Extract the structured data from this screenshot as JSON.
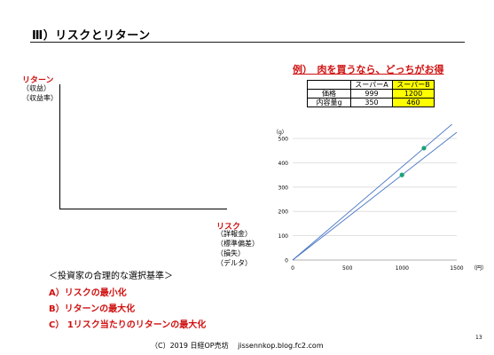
{
  "slide": {
    "title": "Ⅲ）リスクとリターン",
    "page_number": "13",
    "footer": "（C）2019 日経OP売坊　 jissennkop.blog.fc2.com"
  },
  "left_chart": {
    "ylabel": "リターン",
    "ylabel_sub": [
      "（収益）",
      "（収益率）"
    ],
    "xlabel": "リスク",
    "xlabel_sub": [
      "（詳報金）",
      "（標準偏差）",
      "（損失）",
      "（デルタ）"
    ]
  },
  "example": {
    "title": "例）　肉を買うなら、どっちがお得",
    "table": {
      "headers": [
        "",
        "スーパーA",
        "スーパーB"
      ],
      "rows": [
        {
          "label": "価格",
          "a": "999",
          "b": "1200"
        },
        {
          "label": "内容量g",
          "a": "350",
          "b": "460"
        }
      ]
    }
  },
  "criteria": {
    "title": "＜投資家の合理的な選択基準＞",
    "items": [
      "A）リスクの最小化",
      "B）リターンの最大化",
      "C） 1リスク当たりのリターンの最大化"
    ]
  },
  "chart_data": {
    "type": "scatter",
    "x_unit_label": "（円）",
    "y_unit_label": "（g）",
    "xlim": [
      0,
      1500
    ],
    "ylim": [
      0,
      500
    ],
    "x_ticks": [
      0,
      500,
      1000,
      1500
    ],
    "y_ticks": [
      0,
      100,
      200,
      300,
      400,
      500
    ],
    "grid": true,
    "points": [
      {
        "x": 999,
        "y": 350
      },
      {
        "x": 1200,
        "y": 460
      }
    ],
    "lines": [
      {
        "from": [
          0,
          0
        ],
        "to": [
          1500,
          525
        ]
      },
      {
        "from": [
          0,
          0
        ],
        "to": [
          1500,
          575
        ]
      }
    ],
    "colors": {
      "points": "#1aa37a",
      "lines": "#4472c4",
      "grid": "#d9d9d9"
    }
  }
}
